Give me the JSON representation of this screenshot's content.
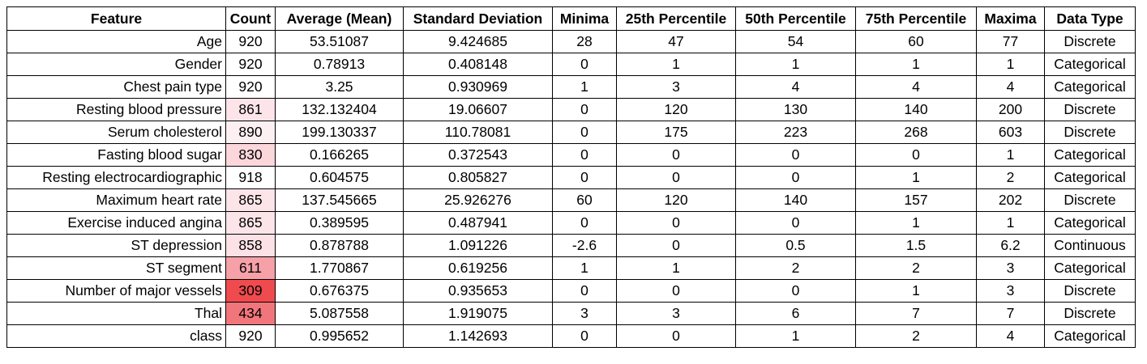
{
  "table": {
    "headers": [
      "Feature",
      "Count",
      "Average (Mean)",
      "Standard Deviation",
      "Minima",
      "25th Percentile",
      "50th Percentile",
      "75th Percentile",
      "Maxima",
      "Data Type"
    ],
    "rows": [
      {
        "feature": "Age",
        "count": "920",
        "mean": "53.51087",
        "std": "9.424685",
        "min": "28",
        "p25": "47",
        "p50": "54",
        "p75": "60",
        "max": "77",
        "type": "Discrete",
        "count_color": "#ffffff"
      },
      {
        "feature": "Gender",
        "count": "920",
        "mean": "0.78913",
        "std": "0.408148",
        "min": "0",
        "p25": "1",
        "p50": "1",
        "p75": "1",
        "max": "1",
        "type": "Categorical",
        "count_color": "#ffffff"
      },
      {
        "feature": "Chest pain type",
        "count": "920",
        "mean": "3.25",
        "std": "0.930969",
        "min": "1",
        "p25": "3",
        "p50": "4",
        "p75": "4",
        "max": "4",
        "type": "Categorical",
        "count_color": "#ffffff"
      },
      {
        "feature": "Resting blood pressure",
        "count": "861",
        "mean": "132.132404",
        "std": "19.06607",
        "min": "0",
        "p25": "120",
        "p50": "130",
        "p75": "140",
        "max": "200",
        "type": "Discrete",
        "count_color": "#fce4e8"
      },
      {
        "feature": "Serum cholesterol",
        "count": "890",
        "mean": "199.130337",
        "std": "110.78081",
        "min": "0",
        "p25": "175",
        "p50": "223",
        "p75": "268",
        "max": "603",
        "type": "Discrete",
        "count_color": "#fdf0f2"
      },
      {
        "feature": "Fasting blood sugar",
        "count": "830",
        "mean": "0.166265",
        "std": "0.372543",
        "min": "0",
        "p25": "0",
        "p50": "0",
        "p75": "0",
        "max": "1",
        "type": "Categorical",
        "count_color": "#fbd6db"
      },
      {
        "feature": "Resting electrocardiographic",
        "count": "918",
        "mean": "0.604575",
        "std": "0.805827",
        "min": "0",
        "p25": "0",
        "p50": "0",
        "p75": "1",
        "max": "2",
        "type": "Categorical",
        "count_color": "#ffffff"
      },
      {
        "feature": "Maximum heart rate",
        "count": "865",
        "mean": "137.545665",
        "std": "25.926276",
        "min": "60",
        "p25": "120",
        "p50": "140",
        "p75": "157",
        "max": "202",
        "type": "Discrete",
        "count_color": "#fce5e9"
      },
      {
        "feature": "Exercise induced angina",
        "count": "865",
        "mean": "0.389595",
        "std": "0.487941",
        "min": "0",
        "p25": "0",
        "p50": "0",
        "p75": "1",
        "max": "1",
        "type": "Categorical",
        "count_color": "#fce5e9"
      },
      {
        "feature": "ST depression",
        "count": "858",
        "mean": "0.878788",
        "std": "1.091226",
        "min": "-2.6",
        "p25": "0",
        "p50": "0.5",
        "p75": "1.5",
        "max": "6.2",
        "type": "Continuous",
        "count_color": "#fce2e6"
      },
      {
        "feature": "ST segment",
        "count": "611",
        "mean": "1.770867",
        "std": "0.619256",
        "min": "1",
        "p25": "1",
        "p50": "2",
        "p75": "2",
        "max": "3",
        "type": "Categorical",
        "count_color": "#f6a0a8"
      },
      {
        "feature": "Number of major vessels",
        "count": "309",
        "mean": "0.676375",
        "std": "0.935653",
        "min": "0",
        "p25": "0",
        "p50": "0",
        "p75": "1",
        "max": "3",
        "type": "Discrete",
        "count_color": "#ef4b4f"
      },
      {
        "feature": "Thal",
        "count": "434",
        "mean": "5.087558",
        "std": "1.919075",
        "min": "3",
        "p25": "3",
        "p50": "6",
        "p75": "7",
        "max": "7",
        "type": "Discrete",
        "count_color": "#f1767b"
      },
      {
        "feature": "class",
        "count": "920",
        "mean": "0.995652",
        "std": "1.142693",
        "min": "0",
        "p25": "0",
        "p50": "1",
        "p75": "2",
        "max": "4",
        "type": "Categorical",
        "count_color": "#ffffff"
      }
    ]
  }
}
